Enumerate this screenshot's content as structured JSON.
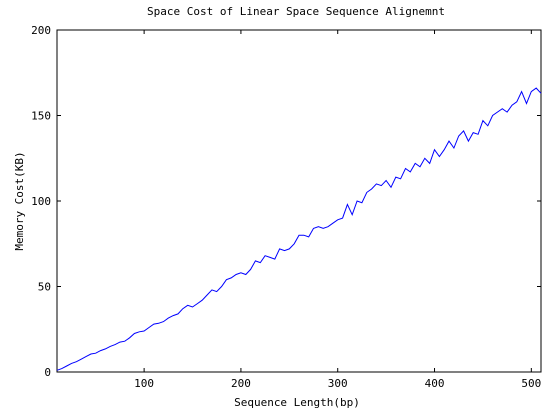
{
  "chart_data": {
    "type": "line",
    "title": "Space Cost of Linear Space Sequence Alignemnt",
    "xlabel": "Sequence Length(bp)",
    "ylabel": "Memory Cost(KB)",
    "xlim": [
      10,
      510
    ],
    "ylim": [
      0,
      200
    ],
    "xticks": [
      100,
      200,
      300,
      400,
      500
    ],
    "yticks": [
      0,
      50,
      100,
      150,
      200
    ],
    "grid": false,
    "legend": "none",
    "series": [
      {
        "color": "#0000ff",
        "x": [
          10,
          15,
          20,
          25,
          30,
          35,
          40,
          45,
          50,
          55,
          60,
          65,
          70,
          75,
          80,
          85,
          90,
          95,
          100,
          105,
          110,
          115,
          120,
          125,
          130,
          135,
          140,
          145,
          150,
          155,
          160,
          165,
          170,
          175,
          180,
          185,
          190,
          195,
          200,
          205,
          210,
          215,
          220,
          225,
          230,
          235,
          240,
          245,
          250,
          255,
          260,
          265,
          270,
          275,
          280,
          285,
          290,
          295,
          300,
          305,
          310,
          315,
          320,
          325,
          330,
          335,
          340,
          345,
          350,
          355,
          360,
          365,
          370,
          375,
          380,
          385,
          390,
          395,
          400,
          405,
          410,
          415,
          420,
          425,
          430,
          435,
          440,
          445,
          450,
          455,
          460,
          465,
          470,
          475,
          480,
          485,
          490,
          495,
          500,
          505,
          510
        ],
        "y": [
          1,
          2,
          3.5,
          5,
          6,
          7.5,
          9,
          10.5,
          11,
          12.5,
          13.5,
          15,
          16,
          17.5,
          18,
          20,
          22.5,
          23.5,
          24,
          26,
          28,
          28.5,
          29.5,
          31.5,
          33,
          34,
          37,
          39,
          38,
          40,
          42,
          45,
          48,
          47,
          50,
          54,
          55,
          57,
          58,
          57,
          60,
          65,
          64,
          68,
          67,
          66,
          72,
          71,
          72,
          75,
          80,
          80,
          79,
          84,
          85,
          84,
          85,
          87,
          89,
          90,
          98,
          92,
          100,
          99,
          105,
          107,
          110,
          109,
          112,
          108,
          114,
          113,
          119,
          117,
          122,
          120,
          125,
          122,
          130,
          126,
          130,
          135,
          131,
          138,
          141,
          135,
          140,
          139,
          147,
          144,
          150,
          152,
          154,
          152,
          156,
          158,
          164,
          157,
          164,
          166,
          163
        ]
      }
    ]
  }
}
